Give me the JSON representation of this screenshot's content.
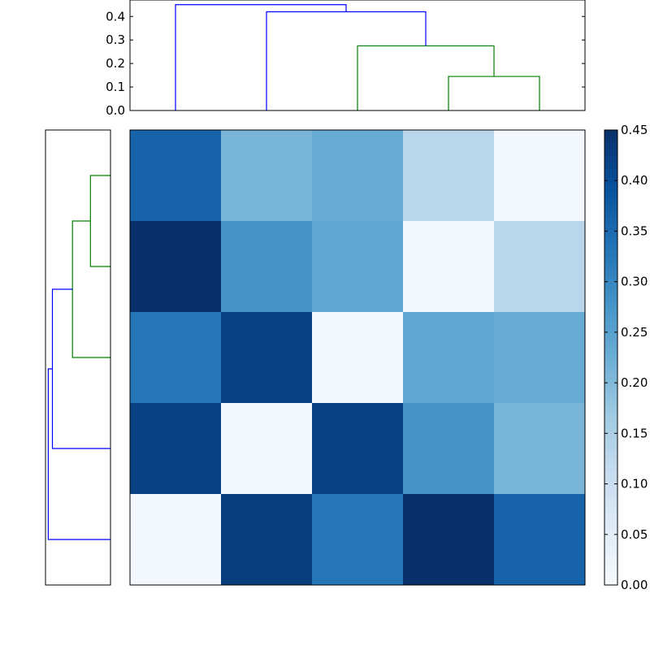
{
  "chart_data": [
    {
      "type": "heatmap",
      "title": "",
      "xlabel": "",
      "ylabel": "",
      "x_ticks": [],
      "y_ticks": [],
      "values": [
        [
          0.36,
          0.21,
          0.23,
          0.13,
          0.01
        ],
        [
          0.45,
          0.28,
          0.24,
          0.01,
          0.13
        ],
        [
          0.33,
          0.42,
          0.01,
          0.24,
          0.23
        ],
        [
          0.42,
          0.01,
          0.42,
          0.28,
          0.21
        ],
        [
          0.01,
          0.43,
          0.33,
          0.45,
          0.36
        ]
      ],
      "colormap": "Blues",
      "color_low": "#f7fbff",
      "color_high": "#08306b",
      "vmin": 0.0,
      "vmax": 0.45,
      "colorbar": {
        "ticks": [
          0.0,
          0.05,
          0.1,
          0.15,
          0.2,
          0.25,
          0.3,
          0.35,
          0.4,
          0.45
        ],
        "tick_labels": [
          "0.00",
          "0.05",
          "0.10",
          "0.15",
          "0.20",
          "0.25",
          "0.30",
          "0.35",
          "0.40",
          "0.45"
        ]
      }
    },
    {
      "type": "dendrogram",
      "orientation": "top",
      "ylim": [
        0.0,
        0.47
      ],
      "ticks": [
        0.0,
        0.1,
        0.2,
        0.3,
        0.4
      ],
      "tick_labels": [
        "0.0",
        "0.1",
        "0.2",
        "0.3",
        "0.4"
      ],
      "leaf_count": 5,
      "links": [
        {
          "left": 3,
          "right": 4,
          "left_height": 0.0,
          "right_height": 0.0,
          "height": 0.145,
          "color": "#008000"
        },
        {
          "left": 2,
          "right": 3.5,
          "left_height": 0.0,
          "right_height": 0.145,
          "height": 0.275,
          "color": "#008000"
        },
        {
          "left": 1,
          "right": 2.75,
          "left_height": 0.0,
          "right_height": 0.275,
          "height": 0.42,
          "color": "#0000ff"
        },
        {
          "left": 0,
          "right": 1.875,
          "left_height": 0.0,
          "right_height": 0.42,
          "height": 0.45,
          "color": "#0000ff"
        }
      ]
    },
    {
      "type": "dendrogram",
      "orientation": "left",
      "ylim": [
        0.0,
        0.47
      ],
      "ticks": [],
      "leaf_count": 5,
      "links": [
        {
          "left": 3,
          "right": 4,
          "left_height": 0.0,
          "right_height": 0.0,
          "height": 0.145,
          "color": "#008000"
        },
        {
          "left": 2,
          "right": 3.5,
          "left_height": 0.0,
          "right_height": 0.145,
          "height": 0.275,
          "color": "#008000"
        },
        {
          "left": 1,
          "right": 2.75,
          "left_height": 0.0,
          "right_height": 0.275,
          "height": 0.42,
          "color": "#0000ff"
        },
        {
          "left": 0,
          "right": 1.875,
          "left_height": 0.0,
          "right_height": 0.42,
          "height": 0.45,
          "color": "#0000ff"
        }
      ]
    }
  ]
}
